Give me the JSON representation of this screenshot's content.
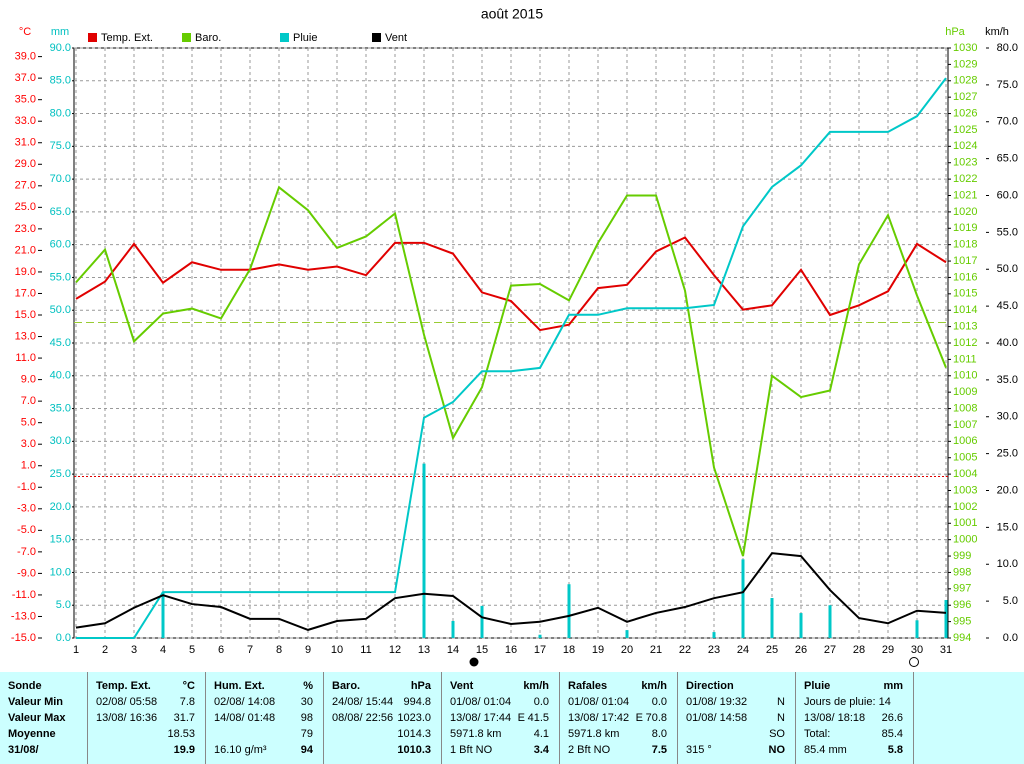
{
  "chart_data": {
    "type": "line",
    "title": "août 2015",
    "categories": [
      1,
      2,
      3,
      4,
      5,
      6,
      7,
      8,
      9,
      10,
      11,
      12,
      13,
      14,
      15,
      16,
      17,
      18,
      19,
      20,
      21,
      22,
      23,
      24,
      25,
      26,
      27,
      28,
      29,
      30,
      31
    ],
    "y_label": "°C",
    "ylim": [
      -15,
      39.8
    ],
    "yticks": [
      {
        "value": -15,
        "label": "-15.0"
      },
      {
        "value": -13,
        "label": "-13.0"
      },
      {
        "value": -11,
        "label": "-11.0"
      },
      {
        "value": -9,
        "label": "-9.0"
      },
      {
        "value": -7,
        "label": "-7.0"
      },
      {
        "value": -5,
        "label": "-5.0"
      },
      {
        "value": -3,
        "label": "-3.0"
      },
      {
        "value": -1,
        "label": "-1.0"
      },
      {
        "value": 1,
        "label": "1.0"
      },
      {
        "value": 3,
        "label": "3.0"
      },
      {
        "value": 5,
        "label": "5.0"
      },
      {
        "value": 7,
        "label": "7.0"
      },
      {
        "value": 9,
        "label": "9.0"
      },
      {
        "value": 11,
        "label": "11.0"
      },
      {
        "value": 13,
        "label": "13.0"
      },
      {
        "value": 15,
        "label": "15.0"
      },
      {
        "value": 17,
        "label": "17.0"
      },
      {
        "value": 19,
        "label": "19.0"
      },
      {
        "value": 21,
        "label": "21.0"
      },
      {
        "value": 23,
        "label": "23.0"
      },
      {
        "value": 25,
        "label": "25.0"
      },
      {
        "value": 27,
        "label": "27.0"
      },
      {
        "value": 29,
        "label": "29.0"
      },
      {
        "value": 31,
        "label": "31.0"
      },
      {
        "value": 33,
        "label": "33.0"
      },
      {
        "value": 35,
        "label": "35.0"
      },
      {
        "value": 37,
        "label": "37.0"
      },
      {
        "value": 39,
        "label": "39.0"
      }
    ],
    "y2_label": "hPa",
    "y2lim": [
      994,
      1030
    ],
    "y2ticks": [
      994,
      995,
      996,
      997,
      998,
      999,
      1000,
      1001,
      1002,
      1003,
      1004,
      1005,
      1006,
      1007,
      1008,
      1009,
      1010,
      1011,
      1012,
      1013,
      1014,
      1015,
      1016,
      1017,
      1018,
      1019,
      1020,
      1021,
      1022,
      1023,
      1024,
      1025,
      1026,
      1027,
      1028,
      1029,
      1030
    ],
    "y3_label": "mm",
    "y3lim": [
      0,
      90
    ],
    "y3ticks": [
      {
        "value": 0,
        "label": "0.0"
      },
      {
        "value": 5,
        "label": "5.0"
      },
      {
        "value": 10,
        "label": "10.0"
      },
      {
        "value": 15,
        "label": "15.0"
      },
      {
        "value": 20,
        "label": "20.0"
      },
      {
        "value": 25,
        "label": "25.0"
      },
      {
        "value": 30,
        "label": "30.0"
      },
      {
        "value": 35,
        "label": "35.0"
      },
      {
        "value": 40,
        "label": "40.0"
      },
      {
        "value": 45,
        "label": "45.0"
      },
      {
        "value": 50,
        "label": "50.0"
      },
      {
        "value": 55,
        "label": "55.0"
      },
      {
        "value": 60,
        "label": "60.0"
      },
      {
        "value": 65,
        "label": "65.0"
      },
      {
        "value": 70,
        "label": "70.0"
      },
      {
        "value": 75,
        "label": "75.0"
      },
      {
        "value": 80,
        "label": "80.0"
      },
      {
        "value": 85,
        "label": "85.0"
      },
      {
        "value": 90,
        "label": "90.0"
      }
    ],
    "y4_label": "km/h",
    "y4lim": [
      0,
      80
    ],
    "y4ticks": [
      {
        "value": 0,
        "label": "0.0"
      },
      {
        "value": 5,
        "label": "5.0"
      },
      {
        "value": 10,
        "label": "10.0"
      },
      {
        "value": 15,
        "label": "15.0"
      },
      {
        "value": 20,
        "label": "20.0"
      },
      {
        "value": 25,
        "label": "25.0"
      },
      {
        "value": 30,
        "label": "30.0"
      },
      {
        "value": 35,
        "label": "35.0"
      },
      {
        "value": 40,
        "label": "40.0"
      },
      {
        "value": 45,
        "label": "45.0"
      },
      {
        "value": 50,
        "label": "50.0"
      },
      {
        "value": 55,
        "label": "55.0"
      },
      {
        "value": 60,
        "label": "60.0"
      },
      {
        "value": 65,
        "label": "65.0"
      },
      {
        "value": 70,
        "label": "70.0"
      },
      {
        "value": 75,
        "label": "75.0"
      },
      {
        "value": 80,
        "label": "80.0"
      }
    ],
    "axis_colors": {
      "y": "#ff0000",
      "y2": "#66cc00",
      "y3": "#00c0c0",
      "y4": "#000000"
    },
    "grid": true,
    "series": [
      {
        "name": "Temp. Ext.",
        "color": "#e00000",
        "axis": "y",
        "values": [
          16.5,
          18.1,
          21.6,
          18.0,
          19.9,
          19.2,
          19.2,
          19.7,
          19.2,
          19.5,
          18.7,
          21.7,
          21.7,
          20.7,
          17.1,
          16.3,
          13.6,
          14.1,
          17.5,
          17.8,
          20.9,
          22.2,
          18.7,
          15.5,
          15.9,
          19.2,
          15.0,
          15.9,
          17.2,
          21.6,
          19.9
        ]
      },
      {
        "name": "Baro.",
        "color": "#66cc00",
        "axis": "y2",
        "values": [
          1015.7,
          1017.7,
          1012.1,
          1013.8,
          1014.1,
          1013.5,
          1016.5,
          1021.5,
          1020.1,
          1017.8,
          1018.5,
          1019.9,
          1012.5,
          1006.2,
          1009.3,
          1015.5,
          1015.6,
          1014.6,
          1018.1,
          1021.0,
          1021.0,
          1015.2,
          1004.4,
          999.0,
          1010.0,
          1008.7,
          1009.1,
          1016.8,
          1019.8,
          1014.9,
          1010.5
        ]
      },
      {
        "name": "Pluie",
        "color": "#00c8c8",
        "axis": "y3",
        "values": [
          0,
          0,
          0,
          7.0,
          7.0,
          7.0,
          7.0,
          7.0,
          7.0,
          7.0,
          7.0,
          7.0,
          33.6,
          36.0,
          40.7,
          40.7,
          41.2,
          49.3,
          49.3,
          50.3,
          50.3,
          50.3,
          50.8,
          62.8,
          68.8,
          72.1,
          77.2,
          77.2,
          77.2,
          79.6,
          85.4
        ],
        "bars": [
          null,
          null,
          null,
          7.0,
          null,
          null,
          null,
          null,
          null,
          null,
          null,
          null,
          26.6,
          2.6,
          4.9,
          null,
          0.5,
          8.2,
          null,
          1.2,
          null,
          null,
          0.9,
          12.0,
          6.1,
          3.8,
          5.0,
          null,
          null,
          2.7,
          5.8
        ]
      },
      {
        "name": "Vent",
        "color": "#000000",
        "axis": "y4",
        "values": [
          1.4,
          2.0,
          4.1,
          5.8,
          4.6,
          4.2,
          2.6,
          2.6,
          1.1,
          2.3,
          2.6,
          5.4,
          6.0,
          5.7,
          2.8,
          1.9,
          2.2,
          3.0,
          4.1,
          2.2,
          3.4,
          4.2,
          5.4,
          6.2,
          11.5,
          11.1,
          6.5,
          2.7,
          2.0,
          3.7,
          3.4
        ]
      }
    ],
    "ref_lines": [
      {
        "axis": "y",
        "value": 0,
        "color": "#e00000",
        "dash": "2,2"
      },
      {
        "axis": "y2",
        "value": 1013.25,
        "color": "#99cc33",
        "dash": "8,4"
      }
    ]
  },
  "summary": {
    "panels": [
      {
        "rows": [
          [
            "Sonde"
          ],
          [
            "Valeur Min"
          ],
          [
            "Valeur Max"
          ],
          [
            "Moyenne"
          ],
          [
            "31/08/"
          ]
        ]
      },
      {
        "rows": [
          [
            "Temp. Ext.",
            "°C"
          ],
          [
            "02/08/ 05:58",
            "7.8"
          ],
          [
            "13/08/ 16:36",
            "31.7"
          ],
          [
            null,
            "18.53"
          ],
          [
            null,
            "19.9"
          ]
        ]
      },
      {
        "rows": [
          [
            "Hum. Ext.",
            "%"
          ],
          [
            "02/08/ 14:08",
            "30"
          ],
          [
            "14/08/ 01:48",
            "98"
          ],
          [
            null,
            "79"
          ],
          [
            "16.10 g/m³",
            "94"
          ]
        ]
      },
      {
        "rows": [
          [
            "Baro.",
            "hPa"
          ],
          [
            "24/08/ 15:44",
            "994.8"
          ],
          [
            "08/08/ 22:56",
            "1023.0"
          ],
          [
            null,
            "1014.3"
          ],
          [
            null,
            "1010.3"
          ]
        ]
      },
      {
        "rows": [
          [
            "Vent",
            "km/h"
          ],
          [
            "01/08/ 01:04",
            "0.0"
          ],
          [
            "13/08/ 17:44",
            "E",
            "41.5"
          ],
          [
            "5971.8 km",
            "4.1"
          ],
          [
            "1 Bft NO",
            "3.4"
          ]
        ]
      },
      {
        "rows": [
          [
            "Rafales",
            "km/h"
          ],
          [
            "01/08/ 01:04",
            "0.0"
          ],
          [
            "13/08/ 17:42",
            "E",
            "70.8"
          ],
          [
            "5971.8 km",
            "8.0"
          ],
          [
            "2 Bft NO",
            "7.5"
          ]
        ]
      },
      {
        "rows": [
          [
            "Direction"
          ],
          [
            "01/08/ 19:32",
            "N"
          ],
          [
            "01/08/ 14:58",
            "N"
          ],
          [
            null,
            "SO"
          ],
          [
            "315 °",
            "NO"
          ]
        ]
      },
      {
        "rows": [
          [
            "Pluie",
            "mm"
          ],
          [
            "Jours de pluie: 14"
          ],
          [
            "13/08/ 18:18",
            "26.6"
          ],
          [
            "Total:",
            "85.4"
          ],
          [
            "85.4 mm",
            "5.8"
          ]
        ]
      }
    ]
  }
}
